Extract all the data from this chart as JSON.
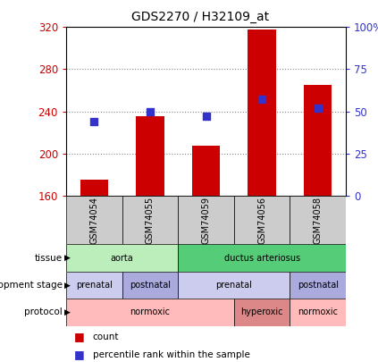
{
  "title": "GDS2270 / H32109_at",
  "samples": [
    "GSM74054",
    "GSM74055",
    "GSM74059",
    "GSM74056",
    "GSM74058"
  ],
  "bar_values": [
    175,
    235,
    207,
    318,
    265
  ],
  "percentile_values": [
    44,
    50,
    47,
    57,
    52
  ],
  "ylim_left": [
    160,
    320
  ],
  "ylim_right": [
    0,
    100
  ],
  "yticks_left": [
    160,
    200,
    240,
    280,
    320
  ],
  "yticks_right": [
    0,
    25,
    50,
    75,
    100
  ],
  "bar_color": "#cc0000",
  "dot_color": "#3333cc",
  "bar_width": 0.5,
  "tissue_groups": [
    {
      "label": "aorta",
      "spans": [
        0,
        2
      ],
      "color": "#bbeebb"
    },
    {
      "label": "ductus arteriosus",
      "spans": [
        2,
        5
      ],
      "color": "#55cc77"
    }
  ],
  "dev_stage_groups": [
    {
      "label": "prenatal",
      "spans": [
        0,
        1
      ],
      "color": "#ccccee"
    },
    {
      "label": "postnatal",
      "spans": [
        1,
        2
      ],
      "color": "#aaaadd"
    },
    {
      "label": "prenatal",
      "spans": [
        2,
        4
      ],
      "color": "#ccccee"
    },
    {
      "label": "postnatal",
      "spans": [
        4,
        5
      ],
      "color": "#aaaadd"
    }
  ],
  "protocol_groups": [
    {
      "label": "normoxic",
      "spans": [
        0,
        3
      ],
      "color": "#ffbbbb"
    },
    {
      "label": "hyperoxic",
      "spans": [
        3,
        4
      ],
      "color": "#dd8888"
    },
    {
      "label": "normoxic",
      "spans": [
        4,
        5
      ],
      "color": "#ffbbbb"
    }
  ],
  "left_axis_color": "#cc0000",
  "right_axis_color": "#3333cc",
  "grid_color": "#888888"
}
